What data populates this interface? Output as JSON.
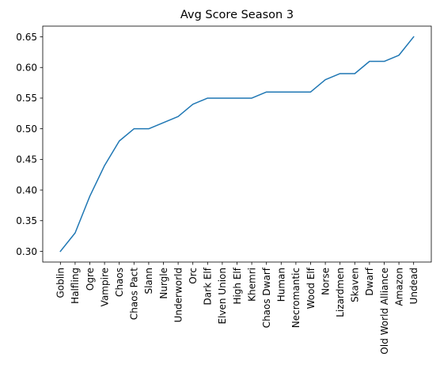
{
  "chart_data": {
    "type": "line",
    "title": "Avg Score Season 3",
    "xlabel": "",
    "ylabel": "",
    "categories": [
      "Goblin",
      "Halfling",
      "Ogre",
      "Vampire",
      "Chaos",
      "Chaos Pact",
      "Slann",
      "Nurgle",
      "Underworld",
      "Orc",
      "Dark Elf",
      "Elven Union",
      "High Elf",
      "Khemri",
      "Chaos Dwarf",
      "Human",
      "Necromantic",
      "Wood Elf",
      "Norse",
      "Lizardmen",
      "Skaven",
      "Dwarf",
      "Old World Alliance",
      "Amazon",
      "Undead"
    ],
    "series": [
      {
        "values": [
          0.3,
          0.33,
          0.39,
          0.44,
          0.48,
          0.5,
          0.5,
          0.51,
          0.52,
          0.54,
          0.55,
          0.55,
          0.55,
          0.55,
          0.56,
          0.56,
          0.56,
          0.56,
          0.58,
          0.59,
          0.59,
          0.61,
          0.61,
          0.62,
          0.65
        ],
        "color": "#1f77b4"
      }
    ],
    "ylim": [
      0.2825,
      0.6675
    ],
    "yticks": [
      "0.30",
      "0.35",
      "0.40",
      "0.45",
      "0.50",
      "0.55",
      "0.60",
      "0.65"
    ],
    "grid": false,
    "legend": "none"
  }
}
